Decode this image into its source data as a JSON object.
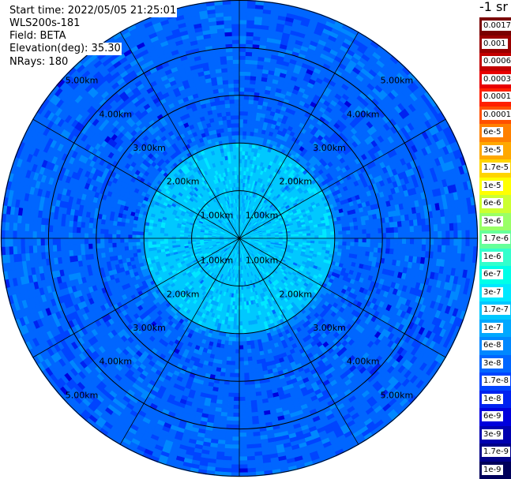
{
  "header": {
    "start_time": "Start time: 2022/05/05 21:25:01",
    "instrument": "WLS200s-181",
    "field": "Field: BETA",
    "elevation": "Elevation(deg): 35.30",
    "nrays": "NRays: 180"
  },
  "colorbar": {
    "unit_title": "-1 sr",
    "levels": [
      {
        "label": "0.0017",
        "color": "#7a0000"
      },
      {
        "label": "0.001",
        "color": "#9a0000"
      },
      {
        "label": "0.0006",
        "color": "#c30000"
      },
      {
        "label": "0.0003",
        "color": "#e80000"
      },
      {
        "label": "0.00017",
        "color": "#ff2000"
      },
      {
        "label": "0.0001",
        "color": "#ff5000"
      },
      {
        "label": "6e-5",
        "color": "#ff8000"
      },
      {
        "label": "3e-5",
        "color": "#ffa800"
      },
      {
        "label": "1.7e-5",
        "color": "#ffd400"
      },
      {
        "label": "1e-5",
        "color": "#ffff00"
      },
      {
        "label": "6e-6",
        "color": "#ccff30"
      },
      {
        "label": "3e-6",
        "color": "#99ff66"
      },
      {
        "label": "1.7e-6",
        "color": "#66ff99"
      },
      {
        "label": "1e-6",
        "color": "#33ffcc"
      },
      {
        "label": "6e-7",
        "color": "#00ffe8"
      },
      {
        "label": "3e-7",
        "color": "#00e8ff"
      },
      {
        "label": "1.7e-7",
        "color": "#00c8ff"
      },
      {
        "label": "1e-7",
        "color": "#00a8ff"
      },
      {
        "label": "6e-8",
        "color": "#0088ff"
      },
      {
        "label": "3e-8",
        "color": "#0066ff"
      },
      {
        "label": "1.7e-8",
        "color": "#0044ff"
      },
      {
        "label": "1e-8",
        "color": "#0022f0"
      },
      {
        "label": "6e-9",
        "color": "#0000dd"
      },
      {
        "label": "3e-9",
        "color": "#0000b0"
      },
      {
        "label": "1.7e-9",
        "color": "#000088"
      },
      {
        "label": "1e-9",
        "color": "#00005a"
      }
    ]
  },
  "chart_data": {
    "type": "heatmap",
    "projection": "polar",
    "field": "BETA",
    "range_rings_km": [
      1.0,
      2.0,
      3.0,
      4.0,
      5.0
    ],
    "range_ring_labels": [
      "1.00km",
      "2.00km",
      "3.00km",
      "4.00km",
      "5.00km"
    ],
    "max_range_km": 5.0,
    "spokes_deg": 30,
    "nrays": 180,
    "color_scale": "log",
    "value_range": [
      1e-09,
      0.0017
    ],
    "radial_profile_km": [
      {
        "r_from": 0.0,
        "r_to": 2.0,
        "level": "1.7e-7"
      },
      {
        "r_from": 2.0,
        "r_to": 2.2,
        "level": "6e-8"
      },
      {
        "r_from": 2.2,
        "r_to": 5.0,
        "level": "3e-8"
      }
    ]
  }
}
